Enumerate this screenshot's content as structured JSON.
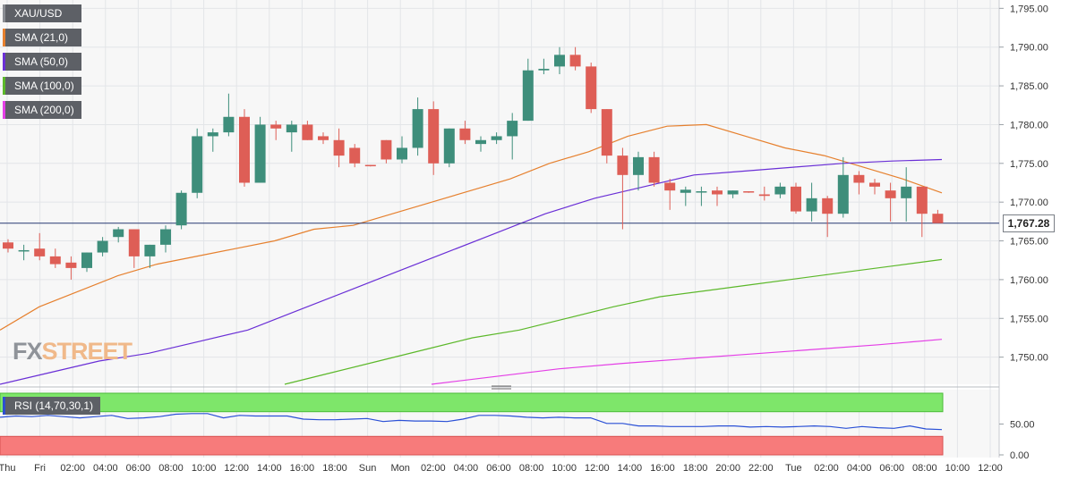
{
  "chart_data": {
    "type": "candlestick",
    "symbol": "XAU/USD",
    "price_axis": {
      "ylim": [
        1746.5,
        1795.5
      ],
      "ticks": [
        "1,795.00",
        "1,790.00",
        "1,785.00",
        "1,780.00",
        "1,775.00",
        "1,770.00",
        "1,765.00",
        "1,760.00",
        "1,755.00",
        "1,750.00"
      ],
      "tick_values": [
        1795,
        1790,
        1785,
        1780,
        1775,
        1770,
        1765,
        1760,
        1755,
        1750
      ],
      "last_price_label": "1,767.28",
      "last_price": 1767.28
    },
    "time_axis": {
      "labels": [
        "Thu",
        "Fri",
        "02:00",
        "04:00",
        "06:00",
        "08:00",
        "10:00",
        "12:00",
        "14:00",
        "16:00",
        "18:00",
        "Sun",
        "Mon",
        "02:00",
        "04:00",
        "06:00",
        "08:00",
        "10:00",
        "12:00",
        "14:00",
        "16:00",
        "18:00",
        "20:00",
        "22:00",
        "Tue",
        "02:00",
        "04:00",
        "06:00",
        "08:00",
        "10:00",
        "12:00"
      ]
    },
    "candles": [
      {
        "o": 1764.8,
        "h": 1765.2,
        "l": 1763.5,
        "c": 1764.0
      },
      {
        "o": 1763.8,
        "h": 1764.5,
        "l": 1762.5,
        "c": 1763.8
      },
      {
        "o": 1764.0,
        "h": 1766.0,
        "l": 1762.5,
        "c": 1763.0
      },
      {
        "o": 1763.0,
        "h": 1764.0,
        "l": 1761.5,
        "c": 1762.0
      },
      {
        "o": 1762.2,
        "h": 1763.0,
        "l": 1760.0,
        "c": 1761.5
      },
      {
        "o": 1761.5,
        "h": 1763.5,
        "l": 1761.0,
        "c": 1763.5
      },
      {
        "o": 1763.5,
        "h": 1765.5,
        "l": 1763.0,
        "c": 1765.0
      },
      {
        "o": 1765.5,
        "h": 1766.8,
        "l": 1764.8,
        "c": 1766.5
      },
      {
        "o": 1766.5,
        "h": 1766.5,
        "l": 1761.5,
        "c": 1763.0
      },
      {
        "o": 1763.0,
        "h": 1764.5,
        "l": 1761.5,
        "c": 1764.5
      },
      {
        "o": 1764.5,
        "h": 1767.0,
        "l": 1763.5,
        "c": 1766.5
      },
      {
        "o": 1767.0,
        "h": 1771.5,
        "l": 1766.5,
        "c": 1771.2
      },
      {
        "o": 1771.2,
        "h": 1779.5,
        "l": 1770.5,
        "c": 1778.5
      },
      {
        "o": 1778.5,
        "h": 1779.5,
        "l": 1776.5,
        "c": 1779.0
      },
      {
        "o": 1779.0,
        "h": 1784.0,
        "l": 1778.5,
        "c": 1781.0
      },
      {
        "o": 1781.0,
        "h": 1782.0,
        "l": 1772.0,
        "c": 1772.5
      },
      {
        "o": 1772.5,
        "h": 1781.0,
        "l": 1772.5,
        "c": 1780.0
      },
      {
        "o": 1780.0,
        "h": 1780.5,
        "l": 1778.0,
        "c": 1779.5
      },
      {
        "o": 1779.0,
        "h": 1780.5,
        "l": 1776.5,
        "c": 1780.0
      },
      {
        "o": 1780.0,
        "h": 1780.5,
        "l": 1778.0,
        "c": 1778.0
      },
      {
        "o": 1778.5,
        "h": 1779.0,
        "l": 1777.5,
        "c": 1778.0
      },
      {
        "o": 1778.0,
        "h": 1779.5,
        "l": 1774.5,
        "c": 1776.0
      },
      {
        "o": 1777.0,
        "h": 1777.5,
        "l": 1774.5,
        "c": 1775.0
      },
      {
        "o": 1774.8,
        "h": 1774.8,
        "l": 1774.6,
        "c": 1774.7
      },
      {
        "o": 1778.0,
        "h": 1778.0,
        "l": 1775.0,
        "c": 1775.5
      },
      {
        "o": 1775.5,
        "h": 1778.5,
        "l": 1775.0,
        "c": 1777.0
      },
      {
        "o": 1777.0,
        "h": 1783.5,
        "l": 1776.0,
        "c": 1782.0
      },
      {
        "o": 1782.0,
        "h": 1783.0,
        "l": 1773.5,
        "c": 1775.0
      },
      {
        "o": 1775.0,
        "h": 1779.5,
        "l": 1774.5,
        "c": 1779.5
      },
      {
        "o": 1779.5,
        "h": 1780.5,
        "l": 1777.5,
        "c": 1778.0
      },
      {
        "o": 1777.5,
        "h": 1778.5,
        "l": 1776.5,
        "c": 1778.0
      },
      {
        "o": 1778.0,
        "h": 1779.0,
        "l": 1777.5,
        "c": 1778.5
      },
      {
        "o": 1778.5,
        "h": 1781.5,
        "l": 1775.5,
        "c": 1780.5
      },
      {
        "o": 1780.5,
        "h": 1788.5,
        "l": 1780.5,
        "c": 1787.0
      },
      {
        "o": 1787.0,
        "h": 1788.5,
        "l": 1786.5,
        "c": 1787.2
      },
      {
        "o": 1787.5,
        "h": 1790.0,
        "l": 1786.5,
        "c": 1789.0
      },
      {
        "o": 1789.0,
        "h": 1790.0,
        "l": 1787.0,
        "c": 1787.5
      },
      {
        "o": 1787.5,
        "h": 1788.0,
        "l": 1781.5,
        "c": 1782.0
      },
      {
        "o": 1782.0,
        "h": 1782.0,
        "l": 1775.0,
        "c": 1776.0
      },
      {
        "o": 1776.0,
        "h": 1777.0,
        "l": 1766.5,
        "c": 1773.5
      },
      {
        "o": 1773.5,
        "h": 1776.5,
        "l": 1771.5,
        "c": 1775.8
      },
      {
        "o": 1775.8,
        "h": 1776.5,
        "l": 1772.0,
        "c": 1772.5
      },
      {
        "o": 1772.5,
        "h": 1773.0,
        "l": 1769.0,
        "c": 1771.5
      },
      {
        "o": 1771.2,
        "h": 1772.0,
        "l": 1769.5,
        "c": 1771.6
      },
      {
        "o": 1771.4,
        "h": 1772.0,
        "l": 1769.5,
        "c": 1771.4
      },
      {
        "o": 1771.5,
        "h": 1772.0,
        "l": 1769.5,
        "c": 1771.0
      },
      {
        "o": 1771.0,
        "h": 1771.5,
        "l": 1770.5,
        "c": 1771.5
      },
      {
        "o": 1771.4,
        "h": 1771.4,
        "l": 1771.2,
        "c": 1771.3
      },
      {
        "o": 1771.0,
        "h": 1772.0,
        "l": 1770.2,
        "c": 1770.8
      },
      {
        "o": 1771.0,
        "h": 1772.5,
        "l": 1770.5,
        "c": 1772.0
      },
      {
        "o": 1772.0,
        "h": 1772.5,
        "l": 1768.5,
        "c": 1768.8
      },
      {
        "o": 1768.8,
        "h": 1772.5,
        "l": 1767.5,
        "c": 1770.5
      },
      {
        "o": 1770.5,
        "h": 1770.8,
        "l": 1765.5,
        "c": 1768.5
      },
      {
        "o": 1768.5,
        "h": 1775.8,
        "l": 1768.0,
        "c": 1773.5
      },
      {
        "o": 1773.5,
        "h": 1774.0,
        "l": 1771.0,
        "c": 1772.5
      },
      {
        "o": 1772.5,
        "h": 1773.0,
        "l": 1771.0,
        "c": 1772.0
      },
      {
        "o": 1771.5,
        "h": 1772.5,
        "l": 1767.5,
        "c": 1770.5
      },
      {
        "o": 1770.5,
        "h": 1774.5,
        "l": 1767.5,
        "c": 1772.0
      },
      {
        "o": 1772.0,
        "h": 1772.0,
        "l": 1765.5,
        "c": 1768.5
      },
      {
        "o": 1768.5,
        "h": 1769.0,
        "l": 1767.3,
        "c": 1767.28
      }
    ],
    "series": [
      {
        "name": "SMA (21,0)",
        "color": "#e6802e",
        "y": [
          1753.5,
          1756.5,
          1758.5,
          1760.5,
          1762.0,
          1763.0,
          1764.0,
          1765.0,
          1766.5,
          1767.0,
          1768.5,
          1770.0,
          1771.5,
          1773.0,
          1775.0,
          1776.5,
          1778.5,
          1779.8,
          1780.0,
          1778.5,
          1777.0,
          1776.0,
          1774.5,
          1773.0,
          1771.2
        ]
      },
      {
        "name": "SMA (50,0)",
        "color": "#6a2fd6",
        "y": [
          1746.5,
          1748.0,
          1749.5,
          1750.5,
          1752.0,
          1753.5,
          1756.0,
          1758.5,
          1761.0,
          1763.5,
          1766.0,
          1768.5,
          1770.5,
          1772.0,
          1773.5,
          1774.0,
          1774.5,
          1775.0,
          1775.3,
          1775.5
        ]
      },
      {
        "name": "SMA (100,0)",
        "color": "#5cb82a",
        "y": [
          1746.5,
          1748.0,
          1749.5,
          1751.0,
          1752.5,
          1753.5,
          1755.0,
          1756.5,
          1757.8,
          1758.6,
          1759.4,
          1760.2,
          1761.0,
          1761.8,
          1762.6
        ]
      },
      {
        "name": "SMA (200,0)",
        "color": "#e43fe6",
        "y": [
          1746.5,
          1747.5,
          1748.5,
          1749.2,
          1749.8,
          1750.4,
          1751.0,
          1751.6,
          1752.3
        ]
      }
    ],
    "rsi": {
      "label": "RSI (14,70,30,1)",
      "ylim": [
        0,
        100
      ],
      "overbought": 70,
      "oversold": 30,
      "ticks": [
        "50.00",
        "0.00"
      ],
      "tick_values": [
        50,
        0
      ],
      "values": [
        61,
        63,
        62,
        64,
        62,
        60,
        62,
        64,
        59,
        60,
        62,
        66,
        67,
        67,
        60,
        64,
        63,
        63,
        63,
        58,
        57,
        57,
        58,
        59,
        54,
        56,
        55,
        55,
        54,
        58,
        64,
        64,
        63,
        61,
        60,
        61,
        60,
        60,
        51,
        51,
        47,
        47,
        46,
        46,
        46,
        47,
        47,
        45,
        46,
        45,
        46,
        47,
        46,
        43,
        46,
        44,
        43,
        47,
        42,
        41
      ]
    },
    "watermark": {
      "part1": "FX",
      "part2": "STREET"
    }
  }
}
